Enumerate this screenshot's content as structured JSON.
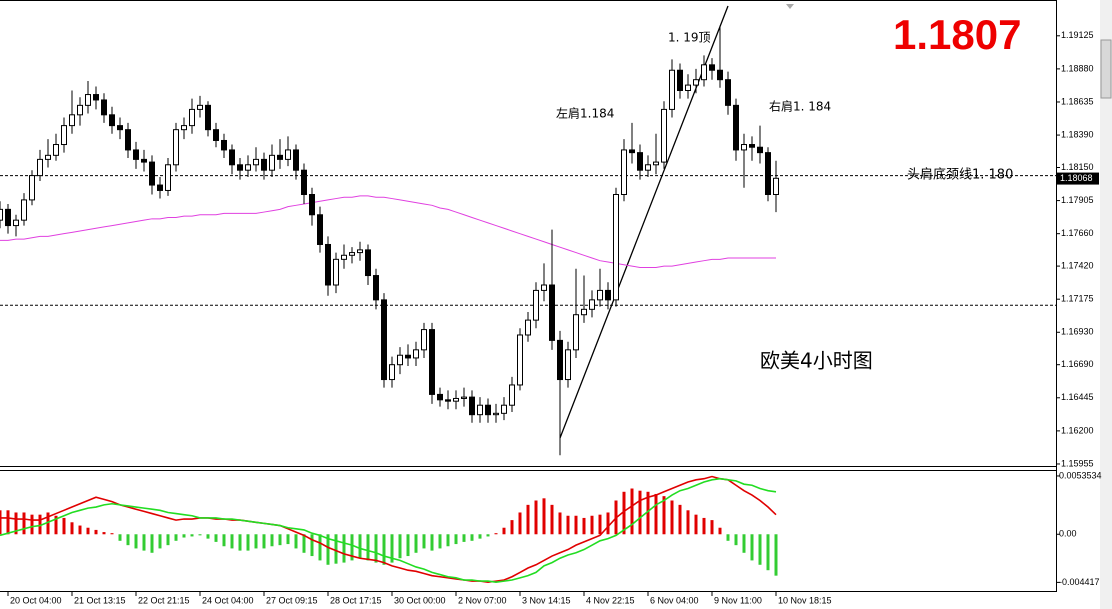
{
  "chart_data": {
    "type": "candlestick",
    "headline": "1.1807",
    "annotations": [
      "1. 19顶",
      "左肩1.184",
      "右肩1. 184",
      "头肩底颈线1. 180",
      "欧美4小时图"
    ],
    "xlim": [
      0,
      132
    ],
    "xticks": [
      {
        "value": 1,
        "label": "20 Oct 04:00"
      },
      {
        "value": 9,
        "label": "21 Oct 13:15"
      },
      {
        "value": 17,
        "label": "22 Oct 21:15"
      },
      {
        "value": 25,
        "label": "24 Oct 04:00"
      },
      {
        "value": 33,
        "label": "27 Oct 09:15"
      },
      {
        "value": 41,
        "label": "28 Oct 17:15"
      },
      {
        "value": 49,
        "label": "30 Oct 00:00"
      },
      {
        "value": 57,
        "label": "2 Nov 07:00"
      },
      {
        "value": 65,
        "label": "3 Nov 14:15"
      },
      {
        "value": 73,
        "label": "4 Nov 22:15"
      },
      {
        "value": 81,
        "label": "6 Nov 04:00"
      },
      {
        "value": 89,
        "label": "9 Nov 11:00"
      },
      {
        "value": 97,
        "label": "10 Nov 18:15"
      }
    ],
    "ylim": [
      1.1594,
      1.1939
    ],
    "yticks": [
      1.19125,
      {
        "value": 1.1888,
        "label": "1.18880"
      },
      1.18635,
      {
        "value": 1.1839,
        "label": "1.18390"
      },
      {
        "value": 1.1815,
        "label": "1.18150"
      },
      1.17905,
      {
        "value": 1.1766,
        "label": "1.17660"
      },
      {
        "value": 1.1742,
        "label": "1.17420"
      },
      1.17175,
      {
        "value": 1.1693,
        "label": "1.16930"
      },
      {
        "value": 1.1669,
        "label": "1.16690"
      },
      1.16445,
      {
        "value": 1.162,
        "label": "1.16200"
      },
      1.15955
    ],
    "up_color": "#ffffff",
    "down_color": "#000000",
    "outline_color": "#000000",
    "hlines": [
      1.1809,
      1.1713
    ],
    "last_price": 1.18068,
    "candles": [
      [
        1.1776,
        1.179,
        1.177,
        1.1784
      ],
      [
        1.1784,
        1.1788,
        1.1766,
        1.1772
      ],
      [
        1.1772,
        1.178,
        1.1764,
        1.1776
      ],
      [
        1.1776,
        1.1796,
        1.1772,
        1.1791
      ],
      [
        1.1791,
        1.1813,
        1.1787,
        1.1809
      ],
      [
        1.1809,
        1.1828,
        1.1805,
        1.1821
      ],
      [
        1.1821,
        1.1836,
        1.1815,
        1.1824
      ],
      [
        1.1824,
        1.184,
        1.182,
        1.1832
      ],
      [
        1.1832,
        1.1852,
        1.1826,
        1.1846
      ],
      [
        1.1846,
        1.1872,
        1.184,
        1.1854
      ],
      [
        1.1854,
        1.1867,
        1.1846,
        1.1861
      ],
      [
        1.1861,
        1.1879,
        1.1855,
        1.1869
      ],
      [
        1.1869,
        1.1875,
        1.1858,
        1.1865
      ],
      [
        1.1865,
        1.187,
        1.1848,
        1.1854
      ],
      [
        1.1854,
        1.186,
        1.184,
        1.1846
      ],
      [
        1.1846,
        1.1852,
        1.1836,
        1.1843
      ],
      [
        1.1843,
        1.1848,
        1.1822,
        1.1828
      ],
      [
        1.1828,
        1.1834,
        1.1814,
        1.1821
      ],
      [
        1.1821,
        1.1828,
        1.1812,
        1.1819
      ],
      [
        1.1819,
        1.1824,
        1.1795,
        1.1802
      ],
      [
        1.1802,
        1.1808,
        1.1792,
        1.1798
      ],
      [
        1.1798,
        1.1822,
        1.1794,
        1.1817
      ],
      [
        1.1817,
        1.1848,
        1.1812,
        1.1843
      ],
      [
        1.1843,
        1.1852,
        1.1836,
        1.1846
      ],
      [
        1.1846,
        1.1866,
        1.184,
        1.1858
      ],
      [
        1.1858,
        1.1868,
        1.1852,
        1.1861
      ],
      [
        1.1861,
        1.1864,
        1.1838,
        1.1843
      ],
      [
        1.1843,
        1.1848,
        1.183,
        1.1835
      ],
      [
        1.1835,
        1.184,
        1.1822,
        1.1828
      ],
      [
        1.1828,
        1.1832,
        1.181,
        1.1817
      ],
      [
        1.1817,
        1.1822,
        1.1806,
        1.1813
      ],
      [
        1.1813,
        1.1824,
        1.1808,
        1.1817
      ],
      [
        1.1817,
        1.183,
        1.1812,
        1.1821
      ],
      [
        1.1821,
        1.1826,
        1.1806,
        1.1813
      ],
      [
        1.1813,
        1.1832,
        1.1808,
        1.1824
      ],
      [
        1.1824,
        1.1836,
        1.1814,
        1.1821
      ],
      [
        1.1821,
        1.1838,
        1.1816,
        1.1828
      ],
      [
        1.1828,
        1.1832,
        1.1806,
        1.1813
      ],
      [
        1.1813,
        1.1818,
        1.1788,
        1.1795
      ],
      [
        1.1795,
        1.18,
        1.1772,
        1.178
      ],
      [
        1.178,
        1.1786,
        1.1752,
        1.1758
      ],
      [
        1.1758,
        1.1764,
        1.172,
        1.1728
      ],
      [
        1.1728,
        1.1752,
        1.1722,
        1.1747
      ],
      [
        1.1747,
        1.1758,
        1.174,
        1.175
      ],
      [
        1.175,
        1.1756,
        1.1744,
        1.1752
      ],
      [
        1.1752,
        1.176,
        1.1746,
        1.1754
      ],
      [
        1.1754,
        1.1758,
        1.1728,
        1.1735
      ],
      [
        1.1735,
        1.174,
        1.171,
        1.1717
      ],
      [
        1.1717,
        1.1722,
        1.1652,
        1.1658
      ],
      [
        1.1658,
        1.1675,
        1.1652,
        1.1669
      ],
      [
        1.1669,
        1.1682,
        1.1662,
        1.1676
      ],
      [
        1.1676,
        1.1684,
        1.1668,
        1.1674
      ],
      [
        1.1674,
        1.1686,
        1.1668,
        1.168
      ],
      [
        1.168,
        1.17,
        1.1674,
        1.1695
      ],
      [
        1.1695,
        1.17,
        1.164,
        1.1647
      ],
      [
        1.1647,
        1.1652,
        1.1638,
        1.1643
      ],
      [
        1.1643,
        1.165,
        1.1636,
        1.1642
      ],
      [
        1.1642,
        1.165,
        1.1636,
        1.1644
      ],
      [
        1.1644,
        1.1652,
        1.1638,
        1.1645
      ],
      [
        1.1645,
        1.165,
        1.1626,
        1.1632
      ],
      [
        1.1632,
        1.1645,
        1.1626,
        1.1639
      ],
      [
        1.1639,
        1.1644,
        1.1626,
        1.1632
      ],
      [
        1.1632,
        1.164,
        1.1626,
        1.1633
      ],
      [
        1.1633,
        1.1645,
        1.1628,
        1.1639
      ],
      [
        1.1639,
        1.166,
        1.1634,
        1.1654
      ],
      [
        1.1654,
        1.1696,
        1.165,
        1.1691
      ],
      [
        1.1691,
        1.1708,
        1.1686,
        1.1702
      ],
      [
        1.1702,
        1.173,
        1.1696,
        1.1724
      ],
      [
        1.1724,
        1.1744,
        1.1716,
        1.1728
      ],
      [
        1.1728,
        1.1769,
        1.168,
        1.1687
      ],
      [
        1.1687,
        1.1694,
        1.1602,
        1.1658
      ],
      [
        1.1658,
        1.1686,
        1.1652,
        1.168
      ],
      [
        1.168,
        1.174,
        1.1674,
        1.1706
      ],
      [
        1.1706,
        1.1735,
        1.17,
        1.171
      ],
      [
        1.171,
        1.1724,
        1.1704,
        1.1717
      ],
      [
        1.1717,
        1.174,
        1.1712,
        1.1724
      ],
      [
        1.1724,
        1.173,
        1.171,
        1.1717
      ],
      [
        1.1717,
        1.18,
        1.1712,
        1.1795
      ],
      [
        1.1795,
        1.1836,
        1.179,
        1.1828
      ],
      [
        1.1828,
        1.1848,
        1.1818,
        1.1826
      ],
      [
        1.1826,
        1.1832,
        1.1806,
        1.1813
      ],
      [
        1.1813,
        1.1824,
        1.1808,
        1.1817
      ],
      [
        1.1817,
        1.184,
        1.181,
        1.1819
      ],
      [
        1.1819,
        1.1864,
        1.1814,
        1.1858
      ],
      [
        1.1858,
        1.1895,
        1.1852,
        1.1887
      ],
      [
        1.1887,
        1.1892,
        1.1866,
        1.1872
      ],
      [
        1.1872,
        1.1884,
        1.1866,
        1.1876
      ],
      [
        1.1876,
        1.1888,
        1.187,
        1.188
      ],
      [
        1.188,
        1.1898,
        1.1875,
        1.1891
      ],
      [
        1.1891,
        1.1896,
        1.188,
        1.1887
      ],
      [
        1.1887,
        1.192,
        1.1874,
        1.188
      ],
      [
        1.188,
        1.1886,
        1.1854,
        1.1861
      ],
      [
        1.1861,
        1.1866,
        1.182,
        1.1828
      ],
      [
        1.1828,
        1.184,
        1.18,
        1.1832
      ],
      [
        1.1832,
        1.1838,
        1.182,
        1.183
      ],
      [
        1.183,
        1.1846,
        1.1818,
        1.1826
      ],
      [
        1.1826,
        1.183,
        1.179,
        1.1795
      ],
      [
        1.1795,
        1.182,
        1.1782,
        1.1807
      ]
    ],
    "ma": {
      "color": "#e040e0",
      "values": [
        1.1761,
        1.1761,
        1.1762,
        1.1762,
        1.1763,
        1.1764,
        1.1764,
        1.1765,
        1.1766,
        1.1767,
        1.1768,
        1.1769,
        1.177,
        1.1771,
        1.1772,
        1.1773,
        1.1774,
        1.1775,
        1.1776,
        1.1777,
        1.1777,
        1.1778,
        1.1778,
        1.1779,
        1.1779,
        1.178,
        1.178,
        1.178,
        1.1781,
        1.1781,
        1.1781,
        1.1781,
        1.1781,
        1.1782,
        1.1783,
        1.1784,
        1.1786,
        1.1787,
        1.1788,
        1.1789,
        1.179,
        1.1791,
        1.1792,
        1.1793,
        1.1793,
        1.1794,
        1.1794,
        1.1793,
        1.1793,
        1.1792,
        1.1791,
        1.179,
        1.1789,
        1.1788,
        1.1787,
        1.1785,
        1.1784,
        1.1782,
        1.178,
        1.1778,
        1.1776,
        1.1774,
        1.1772,
        1.177,
        1.1768,
        1.1766,
        1.1764,
        1.1762,
        1.176,
        1.1758,
        1.1756,
        1.1754,
        1.1752,
        1.175,
        1.1748,
        1.1746,
        1.1745,
        1.1744,
        1.1743,
        1.1742,
        1.1741,
        1.1741,
        1.1741,
        1.1742,
        1.1742,
        1.1743,
        1.1744,
        1.1745,
        1.1746,
        1.1747,
        1.1747,
        1.1748,
        1.1748,
        1.1748,
        1.1748,
        1.1748,
        1.1748,
        1.1748
      ]
    },
    "indicator": {
      "type": "macd",
      "ylim": [
        -0.0053,
        0.0059
      ],
      "yticks": [
        0.0053534,
        {
          "value": 0,
          "label": "0.00"
        },
        -0.004417
      ],
      "histogram": {
        "positive_color": "#e00000",
        "negative_color": "#33cc33",
        "values": [
          0.0022,
          0.0022,
          0.002,
          0.002,
          0.0018,
          0.0018,
          0.002,
          0.0017,
          0.0015,
          0.0011,
          0.0008,
          0.0006,
          0.0004,
          0.0002,
          0.0001,
          -0.0006,
          -0.001,
          -0.0013,
          -0.0015,
          -0.0017,
          -0.0013,
          -0.001,
          -0.0006,
          -0.0003,
          -0.0002,
          -0.0001,
          -0.0004,
          -0.0007,
          -0.0011,
          -0.0013,
          -0.0015,
          -0.0015,
          -0.0013,
          -0.0013,
          -0.0011,
          -0.001,
          -0.0009,
          -0.0013,
          -0.0017,
          -0.002,
          -0.0024,
          -0.0028,
          -0.0027,
          -0.0026,
          -0.0024,
          -0.0022,
          -0.0024,
          -0.0026,
          -0.0028,
          -0.0026,
          -0.0022,
          -0.002,
          -0.0017,
          -0.0013,
          -0.0015,
          -0.0013,
          -0.0011,
          -0.0009,
          -0.0007,
          -0.0006,
          -0.0004,
          -0.0002,
          0.0001,
          0.0006,
          0.0013,
          0.002,
          0.0027,
          0.0031,
          0.0033,
          0.0027,
          0.002,
          0.0017,
          0.0017,
          0.0015,
          0.0017,
          0.0018,
          0.002,
          0.0031,
          0.0039,
          0.0042,
          0.004,
          0.0039,
          0.0037,
          0.0035,
          0.0031,
          0.0027,
          0.0022,
          0.0018,
          0.0015,
          0.0013,
          0.0006,
          -0.0006,
          -0.001,
          -0.0017,
          -0.0024,
          -0.0028,
          -0.0033,
          -0.0038
        ]
      },
      "series": [
        {
          "color": "#e00000",
          "values": [
            0.0015,
            0.0015,
            0.0014,
            0.0014,
            0.0013,
            0.0013,
            0.0016,
            0.0019,
            0.0022,
            0.0025,
            0.0028,
            0.0031,
            0.0034,
            0.0032,
            0.003,
            0.0027,
            0.0025,
            0.0023,
            0.0021,
            0.0019,
            0.0017,
            0.0015,
            0.0013,
            0.0014,
            0.0014,
            0.0015,
            0.0015,
            0.0014,
            0.0014,
            0.0013,
            0.0013,
            0.0012,
            0.0011,
            0.001,
            0.0009,
            0.0008,
            0.0005,
            0.0002,
            -0.0001,
            -0.0005,
            -0.0008,
            -0.0012,
            -0.0015,
            -0.0018,
            -0.002,
            -0.0022,
            -0.0023,
            -0.0024,
            -0.0026,
            -0.0029,
            -0.0031,
            -0.0033,
            -0.0034,
            -0.0036,
            -0.0038,
            -0.0039,
            -0.004,
            -0.0041,
            -0.0042,
            -0.0043,
            -0.0043,
            -0.0044,
            -0.0043,
            -0.0042,
            -0.0039,
            -0.0035,
            -0.0031,
            -0.0028,
            -0.0024,
            -0.002,
            -0.0017,
            -0.0014,
            -0.001,
            -0.0007,
            -0.0004,
            -0.0001,
            0.0007,
            0.0015,
            0.0021,
            0.0026,
            0.0031,
            0.0034,
            0.0036,
            0.0039,
            0.0042,
            0.0045,
            0.0048,
            0.005,
            0.0051,
            0.0053,
            0.0051,
            0.005,
            0.0045,
            0.004,
            0.0036,
            0.0031,
            0.0025,
            0.0018
          ]
        },
        {
          "color": "#22dd22",
          "values": [
            -0.0001,
            0.0001,
            0.0003,
            0.0005,
            0.0007,
            0.0008,
            0.0011,
            0.0014,
            0.0017,
            0.002,
            0.0022,
            0.0024,
            0.0025,
            0.0027,
            0.0028,
            0.0027,
            0.0026,
            0.0025,
            0.0024,
            0.0023,
            0.0022,
            0.002,
            0.0019,
            0.0018,
            0.0017,
            0.0015,
            0.0015,
            0.0015,
            0.0014,
            0.0014,
            0.0013,
            0.0012,
            0.0011,
            0.001,
            0.0009,
            0.0008,
            0.0006,
            0.0005,
            0.0004,
            0.0001,
            -0.0001,
            -0.0004,
            -0.0006,
            -0.0008,
            -0.001,
            -0.0013,
            -0.0015,
            -0.0017,
            -0.002,
            -0.0022,
            -0.0024,
            -0.0027,
            -0.003,
            -0.0032,
            -0.0035,
            -0.0037,
            -0.0039,
            -0.004,
            -0.0042,
            -0.0042,
            -0.0043,
            -0.0043,
            -0.0044,
            -0.0043,
            -0.0042,
            -0.004,
            -0.0038,
            -0.0035,
            -0.0029,
            -0.0026,
            -0.0022,
            -0.0019,
            -0.0017,
            -0.0014,
            -0.001,
            -0.0006,
            -0.0004,
            -0.0001,
            0.0004,
            0.0009,
            0.0015,
            0.0021,
            0.0027,
            0.0031,
            0.0036,
            0.004,
            0.0042,
            0.0045,
            0.0048,
            0.005,
            0.0051,
            0.005,
            0.0049,
            0.0046,
            0.0045,
            0.0042,
            0.004,
            0.0039
          ]
        }
      ]
    }
  }
}
